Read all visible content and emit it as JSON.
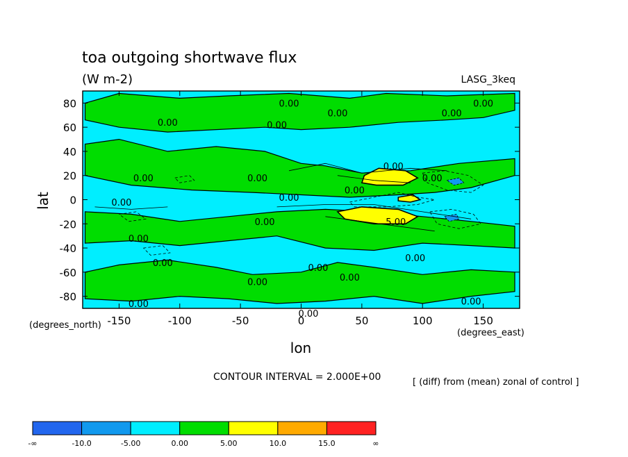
{
  "chart_data": {
    "type": "heatmap",
    "title": "toa outgoing shortwave flux",
    "units": "(W m-2)",
    "dataset": "LASG_3keq",
    "xlabel": "lon",
    "ylabel": "lat",
    "x_units": "(degrees_east)",
    "y_units": "(degrees_north)",
    "xlim": [
      -180,
      180
    ],
    "ylim": [
      -90,
      90
    ],
    "x_ticks": [
      -150,
      -100,
      -50,
      0,
      50,
      100,
      150
    ],
    "x_tick_labels": [
      "-150",
      "-100",
      "-50",
      "0",
      "50",
      "100",
      "150"
    ],
    "y_ticks": [
      80,
      60,
      40,
      20,
      0,
      -20,
      -40,
      -60,
      -80
    ],
    "y_tick_labels": [
      "80",
      "60",
      "40",
      "20",
      "0",
      "-20",
      "-40",
      "-60",
      "-80"
    ],
    "contour_interval_text": "CONTOUR INTERVAL = 2.000E+00",
    "operation_text": "[ (diff) from (mean) zonal of control ]",
    "colorbar": {
      "bounds": [
        "-∞",
        "-10.0",
        "-5.00",
        "0.00",
        "5.00",
        "10.0",
        "15.0",
        "∞"
      ],
      "colors": [
        "#2266ee",
        "#1199ee",
        "#00eeff",
        "#00dd00",
        "#ffff00",
        "#ffaa00",
        "#ff2222"
      ]
    },
    "zero_contour_label": "0.00",
    "contour_labels": [
      {
        "lon": -10,
        "lat": 80,
        "text": "0.00"
      },
      {
        "lon": 150,
        "lat": 80,
        "text": "0.00"
      },
      {
        "lon": 124,
        "lat": 72,
        "text": "0.00"
      },
      {
        "lon": 30,
        "lat": 72,
        "text": "0.00"
      },
      {
        "lon": -110,
        "lat": 64,
        "text": "0.00"
      },
      {
        "lon": -20,
        "lat": 62,
        "text": "0.00"
      },
      {
        "lon": 76,
        "lat": 28,
        "text": "0.00"
      },
      {
        "lon": 108,
        "lat": 18,
        "text": "0.00"
      },
      {
        "lon": -130,
        "lat": 18,
        "text": "0.00"
      },
      {
        "lon": -36,
        "lat": 18,
        "text": "0.00"
      },
      {
        "lon": 44,
        "lat": 8,
        "text": "0.00"
      },
      {
        "lon": -10,
        "lat": 2,
        "text": "0.00"
      },
      {
        "lon": -148,
        "lat": -2,
        "text": "0.00"
      },
      {
        "lon": 78,
        "lat": -18,
        "text": "5.00"
      },
      {
        "lon": -30,
        "lat": -18,
        "text": "0.00"
      },
      {
        "lon": -134,
        "lat": -32,
        "text": "0.00"
      },
      {
        "lon": -114,
        "lat": -52,
        "text": "0.00"
      },
      {
        "lon": 14,
        "lat": -56,
        "text": "0.00"
      },
      {
        "lon": 94,
        "lat": -48,
        "text": "0.00"
      },
      {
        "lon": 40,
        "lat": -64,
        "text": "0.00"
      },
      {
        "lon": -36,
        "lat": -68,
        "text": "0.00"
      },
      {
        "lon": -134,
        "lat": -86,
        "text": "0.00"
      },
      {
        "lon": 140,
        "lat": -84,
        "text": "0.00"
      },
      {
        "lon": 6,
        "lat": -94,
        "text": "0.00"
      }
    ],
    "regions": {
      "positive_0_5": [
        [
          [
            -178,
            80
          ],
          [
            -150,
            88
          ],
          [
            -100,
            84
          ],
          [
            -60,
            86
          ],
          [
            -10,
            88
          ],
          [
            40,
            84
          ],
          [
            70,
            88
          ],
          [
            120,
            86
          ],
          [
            176,
            88
          ],
          [
            176,
            74
          ],
          [
            150,
            68
          ],
          [
            120,
            66
          ],
          [
            80,
            64
          ],
          [
            40,
            60
          ],
          [
            0,
            58
          ],
          [
            -30,
            60
          ],
          [
            -70,
            58
          ],
          [
            -110,
            56
          ],
          [
            -150,
            60
          ],
          [
            -178,
            66
          ]
        ],
        [
          [
            -178,
            46
          ],
          [
            -150,
            50
          ],
          [
            -110,
            40
          ],
          [
            -70,
            44
          ],
          [
            -30,
            40
          ],
          [
            0,
            30
          ],
          [
            20,
            28
          ],
          [
            50,
            22
          ],
          [
            90,
            24
          ],
          [
            130,
            30
          ],
          [
            176,
            34
          ],
          [
            176,
            20
          ],
          [
            140,
            10
          ],
          [
            110,
            6
          ],
          [
            80,
            4
          ],
          [
            40,
            2
          ],
          [
            0,
            4
          ],
          [
            -40,
            6
          ],
          [
            -90,
            8
          ],
          [
            -140,
            12
          ],
          [
            -178,
            20
          ]
        ],
        [
          [
            -178,
            -10
          ],
          [
            -140,
            -12
          ],
          [
            -100,
            -18
          ],
          [
            -60,
            -14
          ],
          [
            -20,
            -10
          ],
          [
            20,
            -8
          ],
          [
            60,
            -10
          ],
          [
            100,
            -14
          ],
          [
            140,
            -18
          ],
          [
            176,
            -22
          ],
          [
            176,
            -40
          ],
          [
            140,
            -38
          ],
          [
            100,
            -36
          ],
          [
            60,
            -42
          ],
          [
            20,
            -40
          ],
          [
            -20,
            -30
          ],
          [
            -60,
            -34
          ],
          [
            -100,
            -38
          ],
          [
            -140,
            -34
          ],
          [
            -178,
            -36
          ]
        ],
        [
          [
            -178,
            -60
          ],
          [
            -150,
            -54
          ],
          [
            -110,
            -50
          ],
          [
            -70,
            -56
          ],
          [
            -40,
            -62
          ],
          [
            0,
            -60
          ],
          [
            30,
            -52
          ],
          [
            60,
            -56
          ],
          [
            100,
            -62
          ],
          [
            140,
            -58
          ],
          [
            176,
            -60
          ],
          [
            176,
            -76
          ],
          [
            140,
            -80
          ],
          [
            100,
            -86
          ],
          [
            60,
            -80
          ],
          [
            20,
            -84
          ],
          [
            -20,
            -86
          ],
          [
            -60,
            -82
          ],
          [
            -100,
            -80
          ],
          [
            -140,
            -84
          ],
          [
            -178,
            -82
          ]
        ]
      ],
      "positive_5_10": [
        [
          [
            52,
            20
          ],
          [
            64,
            26
          ],
          [
            86,
            24
          ],
          [
            96,
            18
          ],
          [
            84,
            12
          ],
          [
            62,
            12
          ],
          [
            50,
            14
          ]
        ],
        [
          [
            80,
            2
          ],
          [
            92,
            4
          ],
          [
            98,
            0
          ],
          [
            90,
            -2
          ],
          [
            80,
            -1
          ]
        ],
        [
          [
            30,
            -10
          ],
          [
            50,
            -6
          ],
          [
            80,
            -8
          ],
          [
            96,
            -14
          ],
          [
            86,
            -20
          ],
          [
            60,
            -20
          ],
          [
            36,
            -16
          ]
        ]
      ],
      "negative_-10_-5": [
        [
          [
            120,
            16
          ],
          [
            130,
            18
          ],
          [
            134,
            14
          ],
          [
            126,
            12
          ]
        ],
        [
          [
            118,
            -14
          ],
          [
            128,
            -12
          ],
          [
            130,
            -16
          ],
          [
            122,
            -18
          ]
        ]
      ]
    },
    "dashed_contours": [
      [
        [
          100,
          22
        ],
        [
          118,
          24
        ],
        [
          138,
          20
        ],
        [
          150,
          12
        ],
        [
          140,
          6
        ],
        [
          120,
          8
        ],
        [
          104,
          14
        ],
        [
          100,
          22
        ]
      ],
      [
        [
          106,
          -10
        ],
        [
          124,
          -8
        ],
        [
          142,
          -12
        ],
        [
          148,
          -20
        ],
        [
          130,
          -24
        ],
        [
          112,
          -20
        ],
        [
          106,
          -10
        ]
      ],
      [
        [
          40,
          -2
        ],
        [
          60,
          2
        ],
        [
          80,
          6
        ],
        [
          96,
          2
        ],
        [
          110,
          0
        ],
        [
          96,
          -4
        ],
        [
          70,
          -6
        ],
        [
          44,
          -6
        ],
        [
          40,
          -2
        ]
      ],
      [
        [
          -150,
          -12
        ],
        [
          -136,
          -10
        ],
        [
          -128,
          -16
        ],
        [
          -142,
          -18
        ],
        [
          -150,
          -12
        ]
      ],
      [
        [
          -104,
          18
        ],
        [
          -92,
          20
        ],
        [
          -88,
          16
        ],
        [
          -100,
          14
        ],
        [
          -104,
          18
        ]
      ],
      [
        [
          -130,
          -40
        ],
        [
          -114,
          -38
        ],
        [
          -108,
          -44
        ],
        [
          -124,
          -46
        ],
        [
          -130,
          -40
        ]
      ]
    ],
    "solid_contours": [
      [
        [
          -10,
          24
        ],
        [
          20,
          30
        ],
        [
          50,
          22
        ],
        [
          90,
          26
        ],
        [
          120,
          24
        ]
      ],
      [
        [
          -20,
          -6
        ],
        [
          20,
          -4
        ],
        [
          60,
          -4
        ],
        [
          100,
          -10
        ],
        [
          140,
          -16
        ]
      ],
      [
        [
          30,
          20
        ],
        [
          60,
          16
        ],
        [
          90,
          14
        ]
      ],
      [
        [
          20,
          -14
        ],
        [
          50,
          -18
        ],
        [
          80,
          -22
        ],
        [
          110,
          -26
        ]
      ],
      [
        [
          -170,
          -6
        ],
        [
          -140,
          -8
        ],
        [
          -110,
          -6
        ]
      ]
    ]
  }
}
